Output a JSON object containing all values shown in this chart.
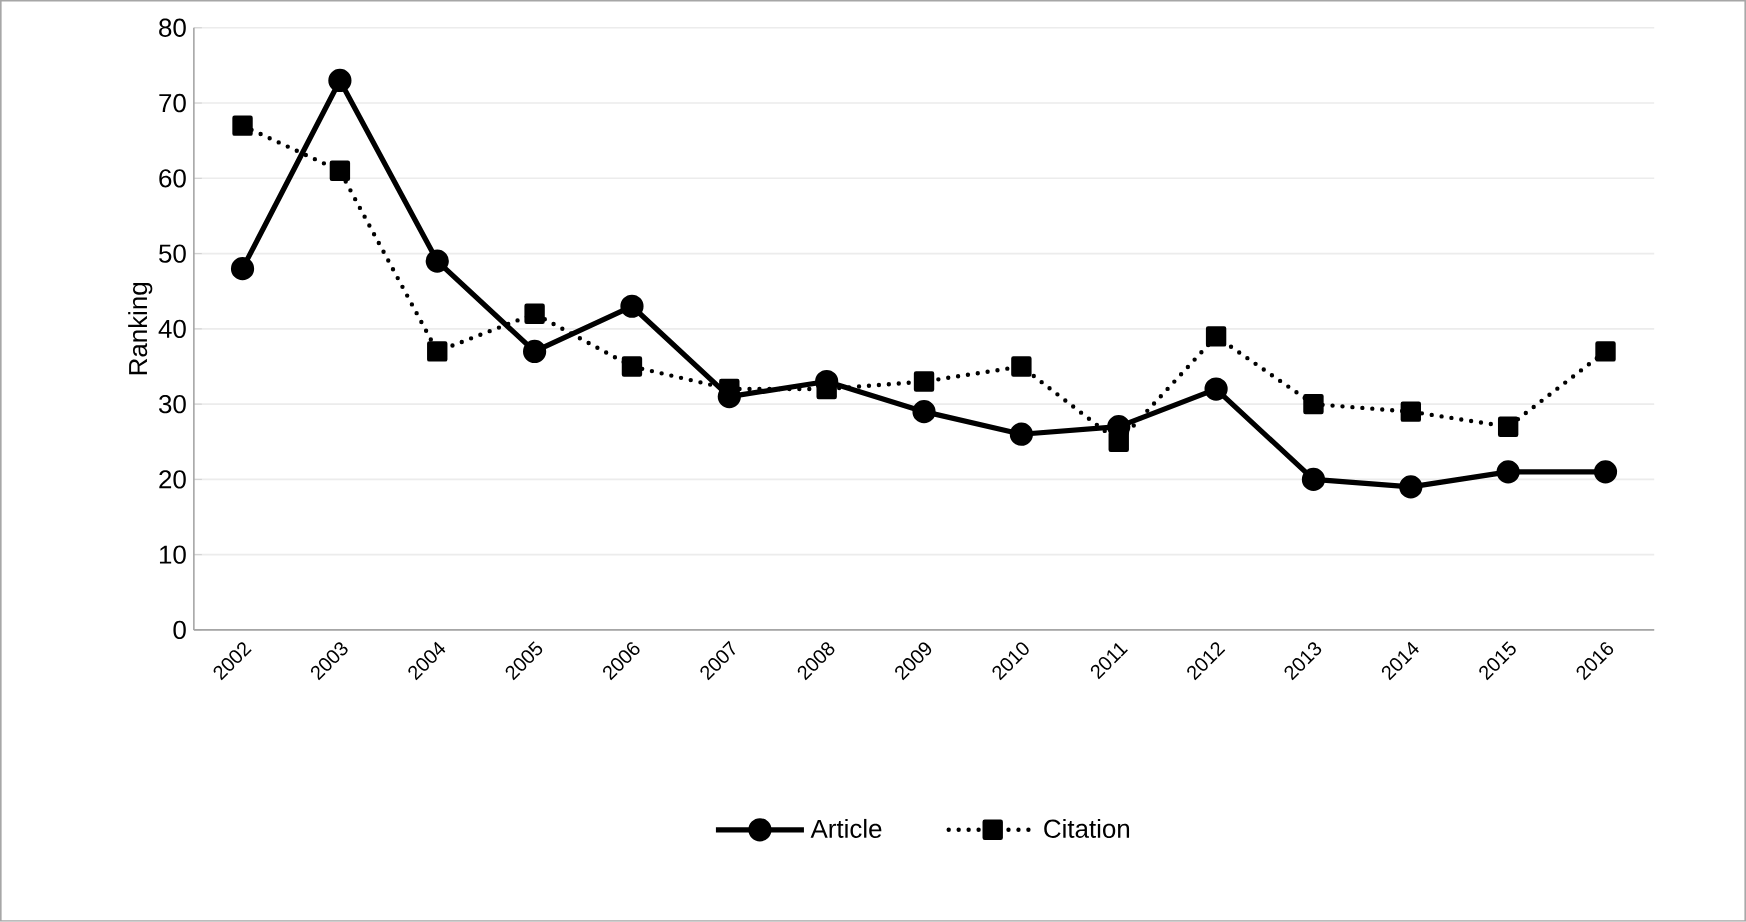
{
  "chart_data": {
    "type": "line",
    "ylabel": "Ranking",
    "categories": [
      "2002",
      "2003",
      "2004",
      "2005",
      "2006",
      "2007",
      "2008",
      "2009",
      "2010",
      "2011",
      "2012",
      "2013",
      "2014",
      "2015",
      "2016"
    ],
    "series": [
      {
        "name": "Article",
        "color": "#000000",
        "marker": "circle",
        "line_style": "solid",
        "values": [
          48,
          73,
          49,
          37,
          43,
          31,
          33,
          29,
          26,
          27,
          32,
          20,
          19,
          21,
          21
        ]
      },
      {
        "name": "Citation",
        "color": "#000000",
        "marker": "square",
        "line_style": "dotted",
        "values": [
          67,
          61,
          37,
          42,
          35,
          32,
          32,
          33,
          35,
          25,
          39,
          30,
          29,
          27,
          37
        ]
      }
    ],
    "ylim": [
      0,
      80
    ],
    "yticks": [
      0,
      10,
      20,
      30,
      40,
      50,
      60,
      70,
      80
    ],
    "grid": "y",
    "legend": "bottom"
  }
}
